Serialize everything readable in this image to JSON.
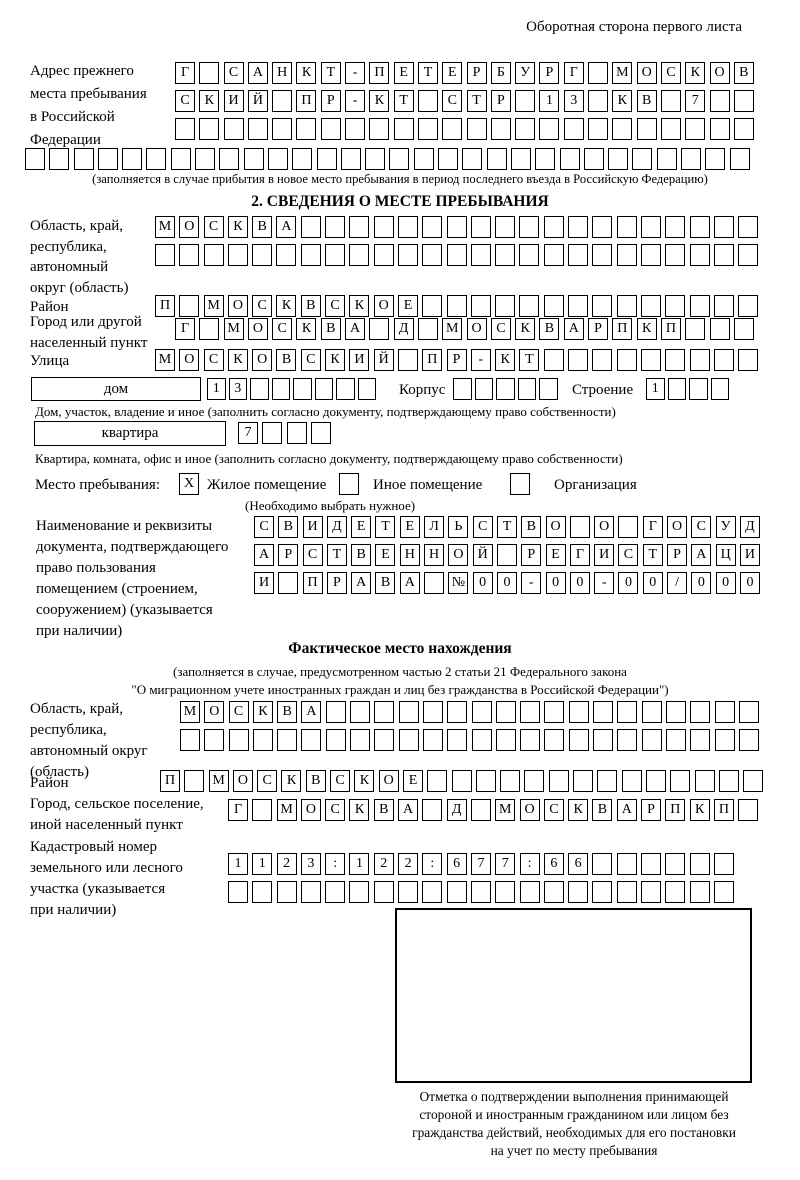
{
  "page_header": "Оборотная сторона первого листа",
  "prev_address": {
    "label_lines": [
      "Адрес прежнего",
      "места пребывания",
      "в Российской",
      "Федерации"
    ],
    "rows": {
      "r1": "Г САНКТ-ПЕТЕРБУРГ МОСКОВ",
      "r2": "СКИЙ ПР-КТ СТР 13 КВ 7  ",
      "r3": "                        ",
      "full": "                              "
    },
    "note": "(заполняется в случае прибытия в новое место пребывания в период последнего въезда в Российскую Федерацию)"
  },
  "section2": {
    "title": "2. СВЕДЕНИЯ О МЕСТЕ ПРЕБЫВАНИЯ",
    "region": {
      "label_lines": [
        "Область, край,",
        "республика,",
        "автономный",
        "округ (область)"
      ],
      "row1": "МОСКВА                   ",
      "row2": "                         "
    },
    "district": {
      "label": "Район",
      "row": "П МОСКВСКОЕ              "
    },
    "city": {
      "label_lines": [
        "Город или другой",
        "населенный пункт"
      ],
      "row": "Г МОСКВА Д МОСКВАРПКП   "
    },
    "street": {
      "label": "Улица",
      "row": "МОСКОВСКИЙ ПР-КТ         "
    },
    "house": {
      "type_value": "дом",
      "number_row": "13      ",
      "korpus_label": "Корпус",
      "korpus_row": "     ",
      "stroenie_label": "Строение",
      "stroenie_row": "1   ",
      "note": "Дом, участок, владение и иное (заполнить согласно документу, подтверждающему право собственности)"
    },
    "apartment": {
      "type_value": "квартира",
      "number_row": "7   ",
      "note": "Квартира, комната, офис и иное (заполнить согласно документу, подтверждающему право собственности)"
    },
    "place_type": {
      "label": "Место пребывания:",
      "options": [
        {
          "mark": "X",
          "label": "Жилое помещение"
        },
        {
          "mark": " ",
          "label": "Иное помещение"
        },
        {
          "mark": " ",
          "label": "Организация"
        }
      ],
      "note": "(Необходимо выбрать нужное)"
    },
    "document": {
      "label_lines": [
        "Наименование и реквизиты",
        "документа, подтверждающего",
        "право пользования",
        "помещением (строением,",
        "сооружением) (указывается",
        "при наличии)"
      ],
      "rows": {
        "r1": "СВИДЕТЕЛЬСТВО О ГОСУД",
        "r2": "АРСТВЕННОЙ РЕГИСТРАЦИ",
        "r3": "И ПРАВА №00-00-00/000"
      }
    }
  },
  "actual_location": {
    "title": "Фактическое место нахождения",
    "note_lines": [
      "(заполняется в случае, предусмотренном частью 2 статьи 21 Федерального закона",
      "\"О миграционном учете иностранных граждан и лиц без гражданства в Российской Федерации\")"
    ],
    "region": {
      "label_lines": [
        "Область, край,",
        "республика,",
        "автономный округ",
        "(область)"
      ],
      "row1": "МОСКВА                  ",
      "row2": "                        "
    },
    "district": {
      "label": "Район",
      "row": "П МОСКВСКОЕ              "
    },
    "city": {
      "label_lines": [
        "Город, сельское поселение,",
        "иной населенный пункт"
      ],
      "row": "Г МОСКВА Д МОСКВАРПКП "
    },
    "cadastre": {
      "label_lines": [
        "Кадастровый номер",
        "земельного или лесного",
        "участка (указывается",
        "при наличии)"
      ],
      "row1": "1123:122:677:66      ",
      "row2": "                     "
    }
  },
  "confirmation": {
    "note_lines": [
      "Отметка о подтверждении выполнения принимающей",
      "стороной и иностранным гражданином или лицом без",
      "гражданства действий, необходимых для его постановки",
      "на учет по месту пребывания"
    ]
  }
}
